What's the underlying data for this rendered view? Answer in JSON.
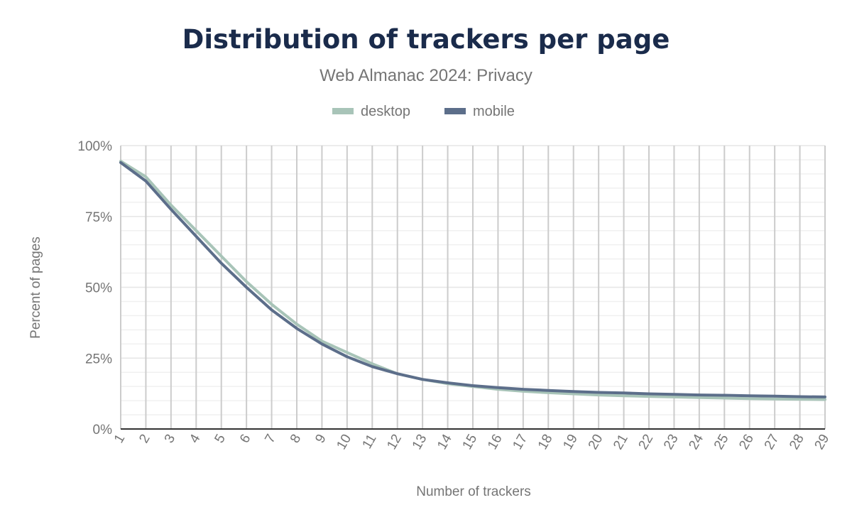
{
  "chart_data": {
    "type": "line",
    "title": "Distribution of trackers per page",
    "subtitle": "Web Almanac 2024: Privacy",
    "xlabel": "Number of trackers",
    "ylabel": "Percent of pages",
    "x": [
      1,
      2,
      3,
      4,
      5,
      6,
      7,
      8,
      9,
      10,
      11,
      12,
      13,
      14,
      15,
      16,
      17,
      18,
      19,
      20,
      21,
      22,
      23,
      24,
      25,
      26,
      27,
      28,
      29
    ],
    "ylim": [
      0,
      100
    ],
    "yticks": [
      "0%",
      "25%",
      "50%",
      "75%",
      "100%"
    ],
    "grid": true,
    "legend_position": "top",
    "series": [
      {
        "name": "desktop",
        "color": "#a8c4b8",
        "values": [
          94.5,
          89,
          79,
          70,
          61,
          52,
          44,
          37,
          31,
          27,
          23,
          19.5,
          17.5,
          16,
          15,
          14,
          13.3,
          12.8,
          12.4,
          12,
          11.7,
          11.5,
          11.3,
          11.1,
          10.9,
          10.7,
          10.6,
          10.5,
          10.4
        ]
      },
      {
        "name": "mobile",
        "color": "#5c6e8a",
        "values": [
          94,
          87.5,
          77.5,
          68,
          58.5,
          50,
          42,
          35.5,
          30,
          25.5,
          22,
          19.5,
          17.5,
          16.3,
          15.3,
          14.6,
          14,
          13.6,
          13.2,
          12.9,
          12.7,
          12.4,
          12.2,
          12,
          11.9,
          11.7,
          11.6,
          11.4,
          11.3
        ]
      }
    ]
  }
}
